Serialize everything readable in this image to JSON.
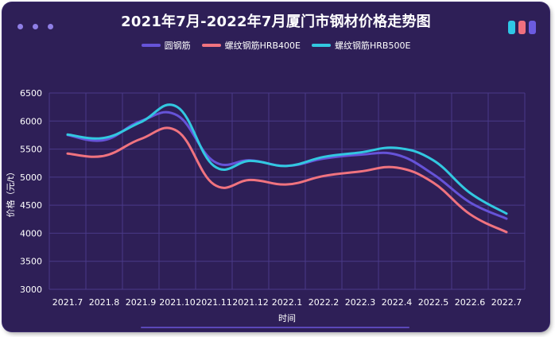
{
  "window": {
    "dot_icons": [
      "dot-icon",
      "dot-icon",
      "dot-icon"
    ],
    "window_icons": [
      {
        "name": "cyan-tab-icon",
        "color": "#2ec7e6"
      },
      {
        "name": "pink-tab-icon",
        "color": "#f06f7e"
      },
      {
        "name": "purple-tab-icon",
        "color": "#6b5be0"
      }
    ]
  },
  "chart_data": {
    "type": "line",
    "title": "2021年7月-2022年7月厦门市钢材价格走势图",
    "xlabel": "时间",
    "ylabel": "价格（元/t）",
    "categories": [
      "2021.7",
      "2021.8",
      "2021.9",
      "2021.10",
      "2021.11",
      "2021.12",
      "2022.1",
      "2022.2",
      "2022.3",
      "2022.4",
      "2022.5",
      "2022.6",
      "2022.7"
    ],
    "ylim": [
      3000,
      6500
    ],
    "yticks": [
      "6500",
      "6000",
      "5500",
      "5000",
      "4500",
      "4000",
      "3500",
      "3000"
    ],
    "grid": true,
    "legend_position": "top-center",
    "series": [
      {
        "name": "圆钢筋",
        "color": "#6653d8",
        "values": [
          5750,
          5660,
          6000,
          6100,
          5280,
          5300,
          5200,
          5330,
          5400,
          5400,
          5050,
          4550,
          4260
        ]
      },
      {
        "name": "螺纹钢筋HRB400E",
        "color": "#f0737f",
        "values": [
          5420,
          5380,
          5680,
          5820,
          4870,
          4950,
          4870,
          5020,
          5100,
          5170,
          4900,
          4340,
          4020
        ]
      },
      {
        "name": "螺纹钢筋HRB500E",
        "color": "#32c8e0",
        "values": [
          5760,
          5700,
          5980,
          6250,
          5200,
          5290,
          5200,
          5360,
          5440,
          5520,
          5300,
          4720,
          4350
        ]
      }
    ]
  }
}
